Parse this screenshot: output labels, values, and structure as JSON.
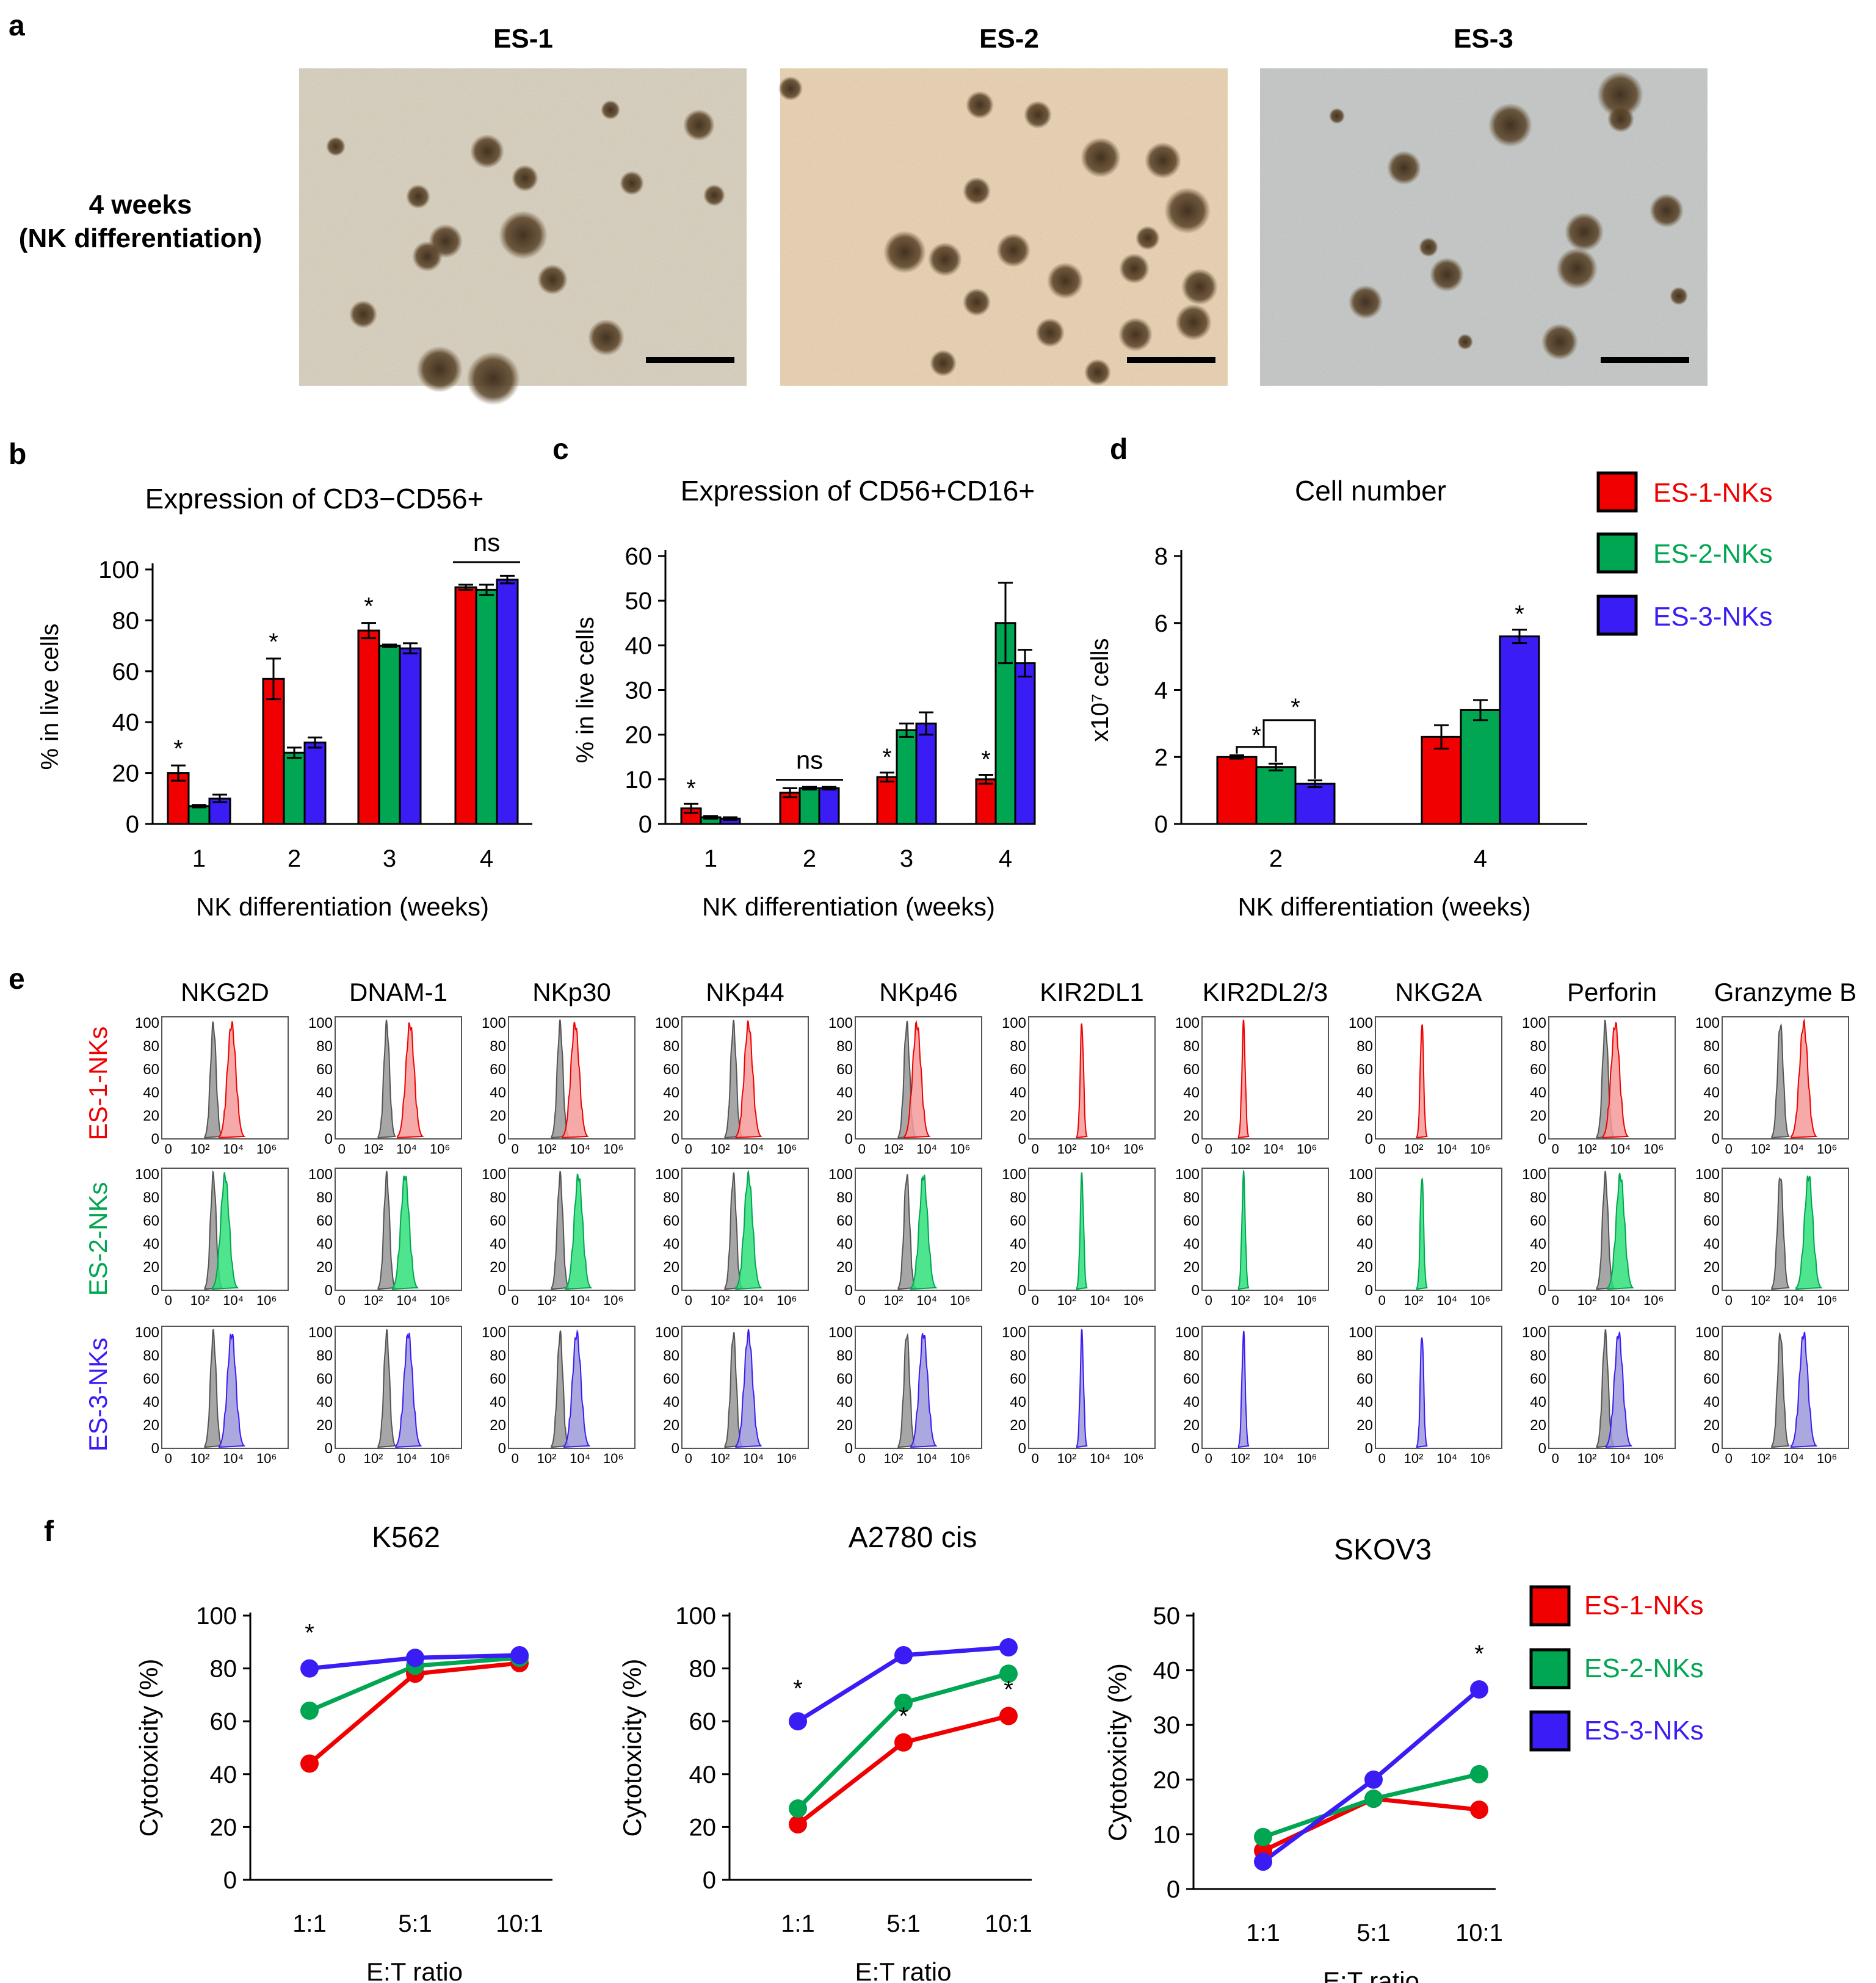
{
  "colors": {
    "es1": "#f00000",
    "es2": "#00a651",
    "es3": "#3a1cf5",
    "grey": "#9c9c9c"
  },
  "panel_letters": [
    "a",
    "b",
    "c",
    "d",
    "e",
    "f"
  ],
  "panel_a": {
    "row_label_line1": "4 weeks",
    "row_label_line2": "(NK differentiation)",
    "images": [
      {
        "title": "ES-1",
        "bg": "#d9d0bc"
      },
      {
        "title": "ES-2",
        "bg": "#ecd2b0"
      },
      {
        "title": "ES-3",
        "bg": "#c3c7c5"
      }
    ]
  },
  "legend": [
    "ES-1-NKs",
    "ES-2-NKs",
    "ES-3-NKs"
  ],
  "chart_data": [
    {
      "id": "b",
      "type": "bar",
      "title": "Expression of CD3−CD56+",
      "xlabel": "NK differentiation (weeks)",
      "ylabel": "% in live cells",
      "categories": [
        "1",
        "2",
        "3",
        "4"
      ],
      "ylim": [
        0,
        100
      ],
      "yticks": [
        "0",
        "20",
        "40",
        "60",
        "80",
        "100"
      ],
      "series": [
        {
          "name": "ES-1-NKs",
          "values": [
            20,
            57,
            76,
            93
          ],
          "errors": [
            3,
            8,
            3,
            1
          ]
        },
        {
          "name": "ES-2-NKs",
          "values": [
            7,
            28,
            70,
            92
          ],
          "errors": [
            0.5,
            2,
            0.5,
            2
          ]
        },
        {
          "name": "ES-3-NKs",
          "values": [
            10,
            32,
            69,
            96
          ],
          "errors": [
            1.5,
            2,
            2,
            1.5
          ]
        }
      ],
      "annotations": [
        "*",
        "*",
        "*",
        "ns"
      ]
    },
    {
      "id": "c",
      "type": "bar",
      "title": "Expression of CD56+CD16+",
      "xlabel": "NK differentiation (weeks)",
      "ylabel": "% in live cells",
      "categories": [
        "1",
        "2",
        "3",
        "4"
      ],
      "ylim": [
        0,
        60
      ],
      "yticks": [
        "0",
        "10",
        "20",
        "30",
        "40",
        "50",
        "60"
      ],
      "series": [
        {
          "name": "ES-1-NKs",
          "values": [
            3.5,
            7,
            10.5,
            10
          ],
          "errors": [
            1,
            1,
            1,
            1
          ]
        },
        {
          "name": "ES-2-NKs",
          "values": [
            1.5,
            8,
            21,
            45
          ],
          "errors": [
            0.3,
            0.3,
            1.5,
            9
          ]
        },
        {
          "name": "ES-3-NKs",
          "values": [
            1.2,
            8,
            22.5,
            36
          ],
          "errors": [
            0.3,
            0.3,
            2.5,
            3
          ]
        }
      ],
      "annotations": [
        "*",
        "ns",
        "*",
        "*"
      ]
    },
    {
      "id": "d",
      "type": "bar",
      "title": "Cell number",
      "xlabel": "NK differentiation (weeks)",
      "ylabel": "x10⁷ cells",
      "categories": [
        "2",
        "4"
      ],
      "ylim": [
        0,
        8
      ],
      "yticks": [
        "0",
        "2",
        "4",
        "6",
        "8"
      ],
      "series": [
        {
          "name": "ES-1-NKs",
          "values": [
            2.0,
            2.6
          ],
          "errors": [
            0.05,
            0.35
          ]
        },
        {
          "name": "ES-2-NKs",
          "values": [
            1.7,
            3.4
          ],
          "errors": [
            0.1,
            0.3
          ]
        },
        {
          "name": "ES-3-NKs",
          "values": [
            1.2,
            5.6
          ],
          "errors": [
            0.1,
            0.2
          ]
        }
      ],
      "annotations": [
        "*",
        "*",
        "*"
      ]
    },
    {
      "id": "e",
      "type": "histogram-grid",
      "markers": [
        "NKG2D",
        "DNAM-1",
        "NKp30",
        "NKp44",
        "NKp46",
        "KIR2DL1",
        "KIR2DL2/3",
        "NKG2A",
        "Perforin",
        "Granzyme B"
      ],
      "rows": [
        "ES-1-NKs",
        "ES-2-NKs",
        "ES-3-NKs"
      ],
      "yticks": [
        "0",
        "20",
        "40",
        "60",
        "80",
        "100"
      ],
      "xticks": [
        "0",
        "10²",
        "10⁴",
        "10⁶"
      ],
      "isotype_peak_log": [
        2.8,
        2.8,
        2.8,
        2.8,
        2.8,
        2.8,
        2.8,
        2.8,
        3.1,
        3.2
      ],
      "sample_peak_log": [
        [
          3.9,
          4.2,
          3.7,
          3.7,
          3.4,
          2.9,
          2.2,
          2.5,
          3.7,
          4.6
        ],
        [
          3.5,
          3.9,
          3.9,
          3.7,
          3.8,
          2.9,
          2.2,
          2.5,
          4.0,
          4.9
        ],
        [
          3.9,
          4.1,
          3.8,
          3.7,
          3.8,
          2.9,
          2.2,
          2.5,
          3.9,
          4.6
        ]
      ],
      "has_isotype": [
        true,
        true,
        true,
        true,
        true,
        false,
        false,
        false,
        true,
        true
      ]
    },
    {
      "id": "f1",
      "type": "line",
      "title": "K562",
      "xlabel": "E:T ratio",
      "ylabel": "Cytotoxicity (%)",
      "categories": [
        "1:1",
        "5:1",
        "10:1"
      ],
      "ylim": [
        0,
        100
      ],
      "yticks": [
        "0",
        "20",
        "40",
        "60",
        "80",
        "100"
      ],
      "series": [
        {
          "name": "ES-1-NKs",
          "values": [
            44,
            78,
            82
          ]
        },
        {
          "name": "ES-2-NKs",
          "values": [
            64,
            81,
            84
          ]
        },
        {
          "name": "ES-3-NKs",
          "values": [
            80,
            84,
            85
          ]
        }
      ],
      "annotations": [
        "*"
      ]
    },
    {
      "id": "f2",
      "type": "line",
      "title": "A2780 cis",
      "xlabel": "E:T ratio",
      "ylabel": "Cytotoxicity (%)",
      "categories": [
        "1:1",
        "5:1",
        "10:1"
      ],
      "ylim": [
        0,
        100
      ],
      "yticks": [
        "0",
        "20",
        "40",
        "60",
        "80",
        "100"
      ],
      "series": [
        {
          "name": "ES-1-NKs",
          "values": [
            21,
            52,
            62
          ]
        },
        {
          "name": "ES-2-NKs",
          "values": [
            27,
            67,
            78
          ]
        },
        {
          "name": "ES-3-NKs",
          "values": [
            60,
            85,
            88
          ]
        }
      ],
      "annotations": [
        "*",
        "*",
        "*"
      ]
    },
    {
      "id": "f3",
      "type": "line",
      "title": "SKOV3",
      "xlabel": "E:T ratio",
      "ylabel": "Cytotoxicity (%)",
      "categories": [
        "1:1",
        "5:1",
        "10:1"
      ],
      "ylim": [
        0,
        50
      ],
      "yticks": [
        "0",
        "10",
        "20",
        "30",
        "40",
        "50"
      ],
      "series": [
        {
          "name": "ES-1-NKs",
          "values": [
            7,
            16.5,
            14.5
          ]
        },
        {
          "name": "ES-2-NKs",
          "values": [
            9.5,
            16.5,
            21
          ]
        },
        {
          "name": "ES-3-NKs",
          "values": [
            5,
            20,
            36.5
          ]
        }
      ],
      "annotations": [
        "*"
      ]
    }
  ]
}
